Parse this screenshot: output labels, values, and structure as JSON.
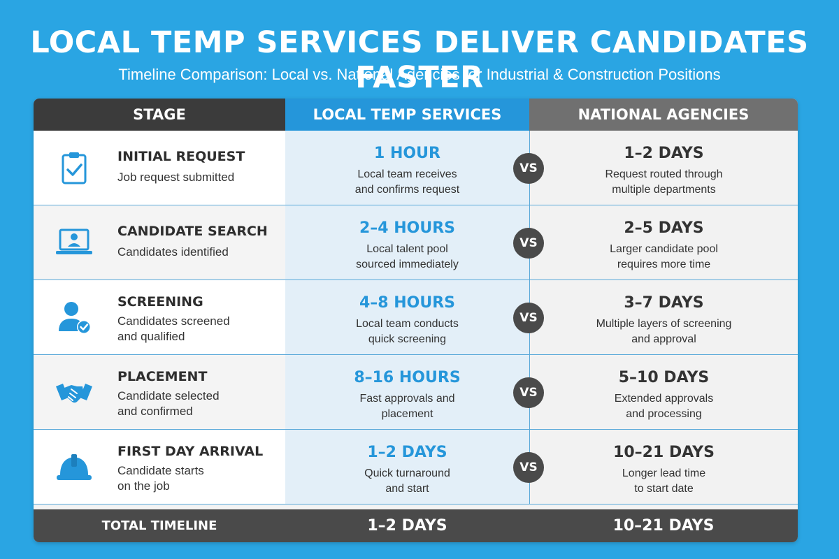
{
  "title": "LOCAL TEMP SERVICES DELIVER CANDIDATES FASTER",
  "subtitle": "Timeline Comparison: Local vs. National Agencies for Industrial & Construction Positions",
  "colors": {
    "background": "#2aa5e3",
    "accent": "#2596da",
    "dark": "#3b3b3b",
    "gray": "#707070"
  },
  "headers": {
    "stage": "STAGE",
    "local": "LOCAL TEMP SERVICES",
    "national": "NATIONAL AGENCIES"
  },
  "vs_label": "VS",
  "rows": [
    {
      "icon": "clipboard-check-icon",
      "stage": "INITIAL REQUEST",
      "desc": "Job request submitted",
      "local_time": "1 HOUR",
      "local_desc": [
        "Local team receives",
        "and confirms request"
      ],
      "national_time": "1–2 DAYS",
      "national_desc": [
        "Request routed through",
        "multiple departments"
      ]
    },
    {
      "icon": "laptop-user-icon",
      "stage": "CANDIDATE SEARCH",
      "desc": "Candidates identified",
      "local_time": "2–4 HOURS",
      "local_desc": [
        "Local talent pool",
        "sourced immediately"
      ],
      "national_time": "2–5 DAYS",
      "national_desc": [
        "Larger candidate pool",
        "requires more time"
      ]
    },
    {
      "icon": "user-check-icon",
      "stage": "SCREENING",
      "desc": [
        "Candidates screened",
        "and qualified"
      ],
      "local_time": "4–8 HOURS",
      "local_desc": [
        "Local team conducts",
        "quick screening"
      ],
      "national_time": "3–7 DAYS",
      "national_desc": [
        "Multiple layers of screening",
        "and approval"
      ]
    },
    {
      "icon": "handshake-icon",
      "stage": "PLACEMENT",
      "desc": [
        "Candidate selected",
        "and confirmed"
      ],
      "local_time": "8–16 HOURS",
      "local_desc": [
        "Fast approvals and",
        "placement"
      ],
      "national_time": "5–10 DAYS",
      "national_desc": [
        "Extended approvals",
        "and processing"
      ]
    },
    {
      "icon": "hard-hat-icon",
      "stage": "FIRST DAY ARRIVAL",
      "desc": [
        "Candidate starts",
        "on the job"
      ],
      "local_time": "1–2 DAYS",
      "local_desc": [
        "Quick turnaround",
        "and start"
      ],
      "national_time": "10–21 DAYS",
      "national_desc": [
        "Longer lead time",
        "to start date"
      ]
    }
  ],
  "footer": {
    "label": "TOTAL TIMELINE",
    "local": "1–2 DAYS",
    "national": "10–21 DAYS"
  }
}
